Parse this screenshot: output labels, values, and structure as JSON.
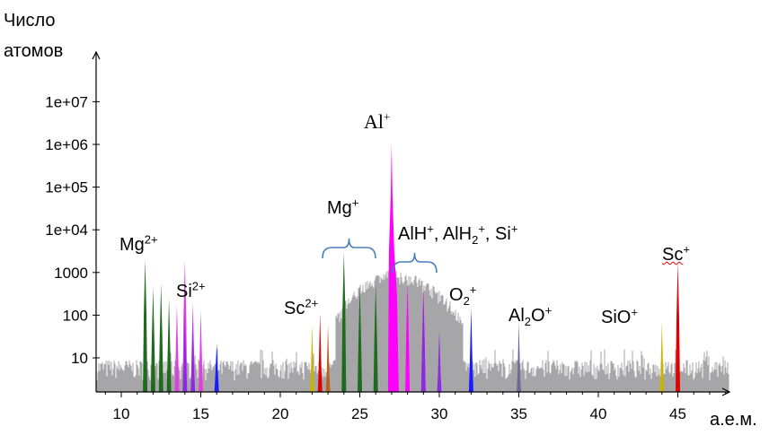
{
  "chart_data": {
    "type": "bar",
    "ylabel": [
      "Число",
      "атомов"
    ],
    "xlabel": "а.е.м.",
    "x_ticks": [
      10,
      15,
      20,
      25,
      30,
      35,
      40,
      45
    ],
    "y_ticks": [
      "10",
      "100",
      "1000",
      "1e+04",
      "1e+05",
      "1e+06",
      "1e+07"
    ],
    "y_scale": "log",
    "ylim": [
      1,
      30000000
    ],
    "xlim": [
      8.5,
      48.5
    ],
    "background_noise": {
      "color": "#a6a6a8",
      "level": 10
    },
    "broad_hump": {
      "color": "#a6a6a8",
      "center": 27,
      "peak": 1000
    },
    "peaks": [
      {
        "species": "Mg2+",
        "color": "#1e6b1e",
        "x": [
          11.5,
          12.0,
          12.5,
          13.0
        ],
        "values": [
          2000,
          450,
          550,
          250
        ]
      },
      {
        "species": "Si2+",
        "color": "#e040e0",
        "x": [
          13.5,
          14.0,
          14.5,
          15.0
        ],
        "values": [
          180,
          1900,
          200,
          130
        ]
      },
      {
        "species": "Si2+",
        "color": "#8a2be2",
        "x": [
          14.0,
          14.5
        ],
        "values": [
          120,
          80
        ]
      },
      {
        "species": "blue",
        "color": "#1a1aff",
        "x": [
          16.0
        ],
        "values": [
          22
        ]
      },
      {
        "species": "Sc2+",
        "color": "#c8b400",
        "x": [
          22.0
        ],
        "values": [
          60
        ]
      },
      {
        "species": "Sc2+",
        "color": "#e00000",
        "x": [
          22.5
        ],
        "values": [
          110
        ]
      },
      {
        "species": "Sc2+",
        "color": "#b5651d",
        "x": [
          23.0
        ],
        "values": [
          60
        ]
      },
      {
        "species": "Mg+",
        "color": "#1e6b1e",
        "x": [
          24.0,
          25.0,
          26.0
        ],
        "values": [
          3000,
          500,
          550
        ]
      },
      {
        "species": "Al+",
        "color": "#ff00ff",
        "x": [
          27.0
        ],
        "values": [
          1100000
        ]
      },
      {
        "species": "AlH+",
        "color": "#ff00ff",
        "x": [
          28.0,
          29.0
        ],
        "values": [
          550,
          450
        ]
      },
      {
        "species": "AlH2+",
        "color": "#8a2be2",
        "x": [
          29.0,
          30.0
        ],
        "values": [
          300,
          45
        ]
      },
      {
        "species": "O2+",
        "color": "#1a1aff",
        "x": [
          32.0
        ],
        "values": [
          150
        ]
      },
      {
        "species": "Al2O+",
        "color": "#6b6b9a",
        "x": [
          35.0
        ],
        "values": [
          70
        ]
      },
      {
        "species": "SiO+",
        "color": "#c8b400",
        "x": [
          44.0
        ],
        "values": [
          70
        ]
      },
      {
        "species": "Sc+",
        "color": "#e00000",
        "x": [
          45.0
        ],
        "values": [
          1700
        ]
      }
    ]
  },
  "annotations": {
    "mg2": {
      "base": "Mg",
      "sup": "2+"
    },
    "si2": {
      "base": "Si",
      "sup": "2+"
    },
    "sc2": {
      "base": "Sc",
      "sup": "2+"
    },
    "mg1": {
      "base": "Mg",
      "sup": "+"
    },
    "al1": {
      "base": "Al",
      "sup": "+"
    },
    "alh": {
      "p1": "AlH",
      "s1": "+",
      "p2": ", AlH",
      "sub2": "2",
      "s2": "+",
      "p3": ", Si",
      "s3": "+"
    },
    "o2": {
      "base": "O",
      "sub": "2",
      "sup": "+"
    },
    "al2o": {
      "p1": "Al",
      "sub": "2",
      "p2": "O",
      "sup": "+"
    },
    "sio": {
      "base": "SiO",
      "sup": "+"
    },
    "sc1": {
      "base": "Sc",
      "sup": "+"
    }
  }
}
